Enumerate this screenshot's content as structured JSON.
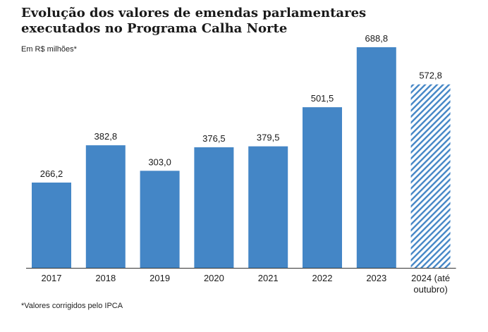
{
  "chart_data": {
    "type": "bar",
    "title": "Evolução dos valores de emendas parlamentares executados no Programa Calha Norte",
    "subtitle": "Em R$ milhões*",
    "footnote": "*Valores corrigidos pelo IPCA",
    "categories": [
      "2017",
      "2018",
      "2019",
      "2020",
      "2021",
      "2022",
      "2023",
      "2024 (até outubro)"
    ],
    "values": [
      266.2,
      382.8,
      303.0,
      376.5,
      379.5,
      501.5,
      688.8,
      572.8
    ],
    "value_labels": [
      "266,2",
      "382,8",
      "303,0",
      "376,5",
      "379,5",
      "501,5",
      "688,8",
      "572,8"
    ],
    "partial_period": [
      false,
      false,
      false,
      false,
      false,
      false,
      false,
      true
    ],
    "ylim": [
      0,
      688.8
    ],
    "grid": false,
    "colors": {
      "bar": "#4486c6",
      "partial_stripe": "#4486c6",
      "axis": "#333333"
    }
  }
}
